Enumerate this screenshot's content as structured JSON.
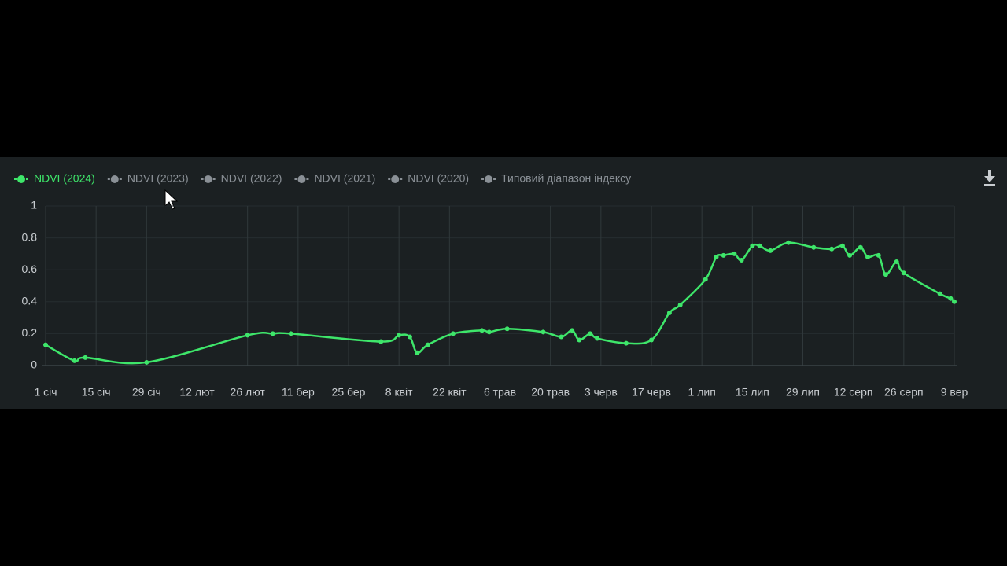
{
  "chart_data": {
    "type": "line",
    "x": [
      0,
      8,
      11,
      28,
      56,
      63,
      68,
      93,
      98,
      101,
      103,
      106,
      113,
      121,
      123,
      128,
      138,
      143,
      146,
      148,
      151,
      153,
      161,
      168,
      173,
      176,
      183,
      186,
      188,
      191,
      193,
      196,
      198,
      201,
      206,
      213,
      218,
      221,
      223,
      226,
      228,
      231,
      233,
      236,
      238,
      248,
      251,
      252
    ],
    "series": [
      {
        "name": "NDVI (2024)",
        "color": "#3ee66a",
        "values": [
          0.13,
          0.03,
          0.05,
          0.02,
          0.19,
          0.2,
          0.2,
          0.15,
          0.19,
          0.18,
          0.08,
          0.13,
          0.2,
          0.22,
          0.21,
          0.23,
          0.21,
          0.18,
          0.22,
          0.16,
          0.2,
          0.17,
          0.14,
          0.16,
          0.33,
          0.38,
          0.54,
          0.68,
          0.69,
          0.7,
          0.66,
          0.75,
          0.75,
          0.72,
          0.77,
          0.74,
          0.73,
          0.75,
          0.69,
          0.74,
          0.68,
          0.69,
          0.57,
          0.65,
          0.58,
          0.45,
          0.42,
          0.4
        ]
      }
    ],
    "inactive_legend": [
      "NDVI (2023)",
      "NDVI (2022)",
      "NDVI (2021)",
      "NDVI (2020)",
      "Типовий діапазон індексу"
    ],
    "inactive_color": "#8a9096",
    "xlim": [
      0,
      252
    ],
    "xticks": [
      {
        "value": 0,
        "label": "1 січ"
      },
      {
        "value": 14,
        "label": "15 січ"
      },
      {
        "value": 28,
        "label": "29 січ"
      },
      {
        "value": 42,
        "label": "12 лют"
      },
      {
        "value": 56,
        "label": "26 лют"
      },
      {
        "value": 70,
        "label": "11 бер"
      },
      {
        "value": 84,
        "label": "25 бер"
      },
      {
        "value": 98,
        "label": "8 квіт"
      },
      {
        "value": 112,
        "label": "22 квіт"
      },
      {
        "value": 126,
        "label": "6 трав"
      },
      {
        "value": 140,
        "label": "20 трав"
      },
      {
        "value": 154,
        "label": "3 черв"
      },
      {
        "value": 168,
        "label": "17 черв"
      },
      {
        "value": 182,
        "label": "1 лип"
      },
      {
        "value": 196,
        "label": "15 лип"
      },
      {
        "value": 210,
        "label": "29 лип"
      },
      {
        "value": 224,
        "label": "12 серп"
      },
      {
        "value": 238,
        "label": "26 серп"
      },
      {
        "value": 252,
        "label": "9 вер"
      }
    ],
    "ylim": [
      0,
      1
    ],
    "yticks": [
      0,
      0.2,
      0.4,
      0.6,
      0.8,
      1
    ],
    "grid": true
  }
}
